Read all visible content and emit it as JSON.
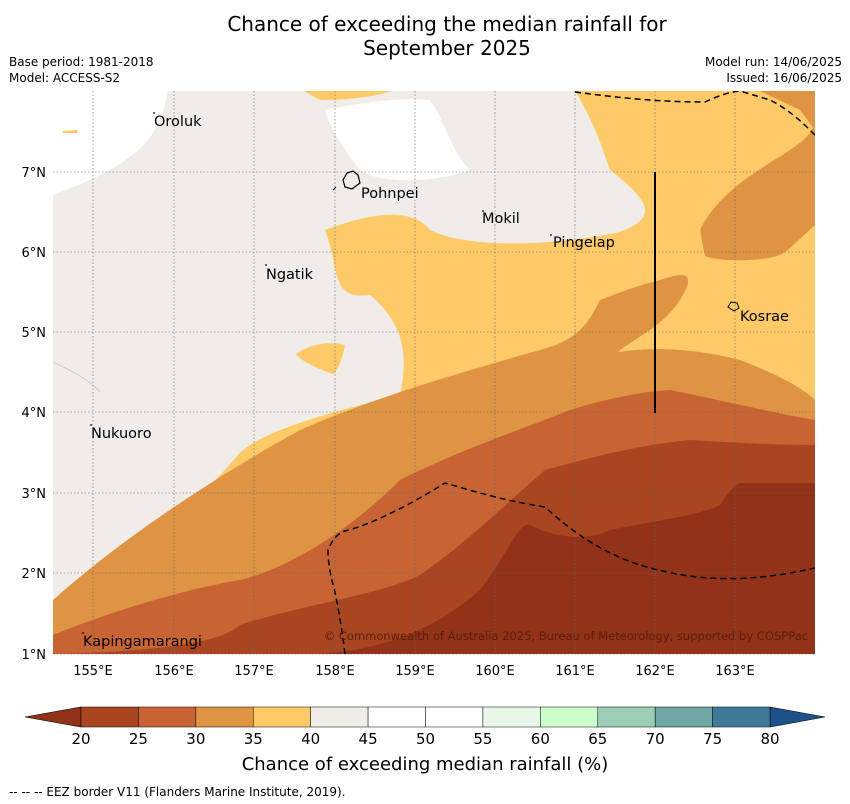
{
  "title_line1": "Chance of exceeding the median rainfall for",
  "title_line2": "September 2025",
  "meta": {
    "base_period": "Base period: 1981-2018",
    "model": "Model: ACCESS-S2",
    "model_run": "Model run: 14/06/2025",
    "issued": "Issued: 16/06/2025"
  },
  "map": {
    "x_ticks": [
      "155°E",
      "156°E",
      "157°E",
      "158°E",
      "159°E",
      "160°E",
      "161°E",
      "162°E",
      "163°E"
    ],
    "y_ticks": [
      "7°N",
      "6°N",
      "5°N",
      "4°N",
      "3°N",
      "2°N",
      "1°N"
    ],
    "places": [
      "Oroluk",
      "Pohnpei",
      "Mokil",
      "Pingelap",
      "Ngatik",
      "Kosrae",
      "Nukuoro",
      "Kapingamarangi"
    ],
    "copyright": "© Commonwealth of Australia 2025, Bureau of Meteorology, supported by COSPPac"
  },
  "colors": {
    "band_20_25": "#aa4522",
    "band_25_30": "#c86433",
    "band_30_35": "#df9444",
    "band_35_40": "#fdca67",
    "band_40_45": "#f0ece7",
    "band_45_55": "#ffffff",
    "below_20": "#923218",
    "band_55_60": "#e9f7e9",
    "band_60_65": "#ccffcc",
    "band_65_70": "#9ccdb5",
    "band_70_75": "#6fa6a6",
    "band_75_80": "#417998",
    "above_80": "#1c5288"
  },
  "colorbar": {
    "ticks": [
      "20",
      "25",
      "30",
      "35",
      "40",
      "45",
      "50",
      "55",
      "60",
      "65",
      "70",
      "75",
      "80"
    ],
    "label": "Chance of exceeding median rainfall (%)"
  },
  "footer": "--  --  -- EEZ border V11 (Flanders Marine Institute, 2019)."
}
